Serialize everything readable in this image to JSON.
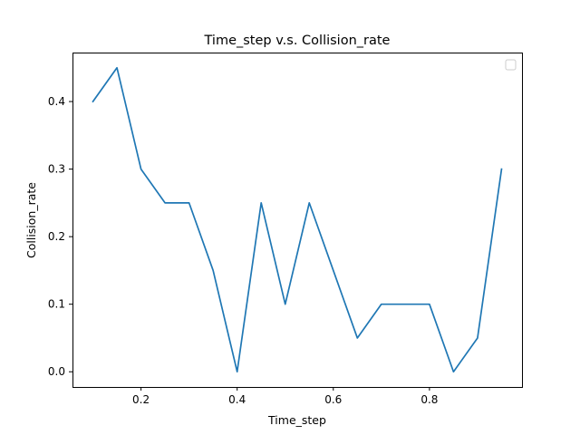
{
  "chart_data": {
    "type": "line",
    "title": "Time_step v.s. Collision_rate",
    "xlabel": "Time_step",
    "ylabel": "Collision_rate",
    "x": [
      0.1,
      0.15,
      0.2,
      0.25,
      0.3,
      0.35,
      0.4,
      0.45,
      0.5,
      0.55,
      0.6,
      0.65,
      0.7,
      0.75,
      0.8,
      0.85,
      0.9,
      0.95
    ],
    "series": [
      {
        "values": [
          0.4,
          0.45,
          0.3,
          0.25,
          0.25,
          0.15,
          0.0,
          0.25,
          0.1,
          0.25,
          0.15,
          0.05,
          0.1,
          0.1,
          0.1,
          0.0,
          0.05,
          0.3
        ],
        "color": "#1f77b4"
      }
    ],
    "xlim": [
      0.0575,
      0.9925
    ],
    "ylim": [
      -0.0225,
      0.4725
    ],
    "xticks": [
      0.2,
      0.4,
      0.6,
      0.8
    ],
    "xtick_labels": [
      "0.2",
      "0.4",
      "0.6",
      "0.8"
    ],
    "yticks": [
      0.0,
      0.1,
      0.2,
      0.3,
      0.4
    ],
    "ytick_labels": [
      "0.0",
      "0.1",
      "0.2",
      "0.3",
      "0.4"
    ],
    "grid": false,
    "legend": {
      "placement": "top-right",
      "entries": []
    }
  }
}
